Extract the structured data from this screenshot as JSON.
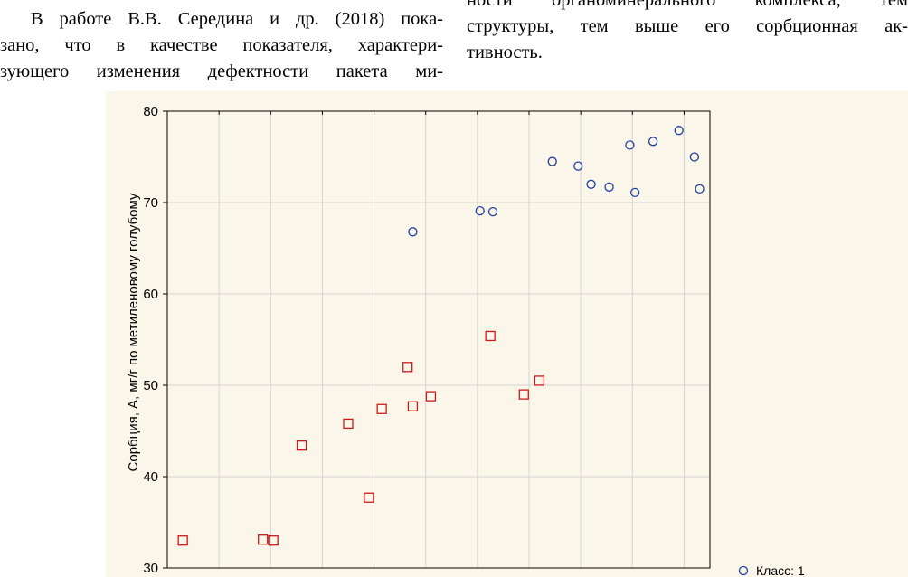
{
  "text": {
    "left_lines": [
      "В работе В.В. Середина и др. (2018) пока-",
      "зано, что в качестве показателя, характери-",
      "зующего изменения дефектности пакета ми-"
    ],
    "right_lines": [
      "ности органоминерального комплекса, тем",
      "структуры, тем выше его сорбционная ак-",
      "тивность."
    ]
  },
  "chart_data": {
    "type": "scatter",
    "title": "",
    "xlabel": "",
    "ylabel": "Сорбция, А, мг/г по метиленовому голубому",
    "ylim": [
      30,
      80
    ],
    "yticks": [
      30,
      40,
      50,
      60,
      70,
      80
    ],
    "xlim": [
      0,
      10.5
    ],
    "grid": true,
    "legend_position": "bottom-right",
    "series": [
      {
        "name": "Класс: 1",
        "marker": "circle",
        "color": "#1f3f9e",
        "points": [
          [
            4.75,
            66.8
          ],
          [
            6.05,
            69.1
          ],
          [
            6.3,
            69.0
          ],
          [
            7.45,
            74.5
          ],
          [
            7.95,
            74.0
          ],
          [
            8.2,
            72.0
          ],
          [
            8.55,
            71.7
          ],
          [
            8.95,
            76.3
          ],
          [
            9.05,
            71.1
          ],
          [
            9.4,
            76.7
          ],
          [
            9.9,
            77.9
          ],
          [
            10.2,
            75.0
          ],
          [
            10.3,
            71.5
          ]
        ]
      },
      {
        "name": "",
        "marker": "square",
        "color": "#cc1a1a",
        "points": [
          [
            0.3,
            33.0
          ],
          [
            1.85,
            33.1
          ],
          [
            2.05,
            33.0
          ],
          [
            2.6,
            43.4
          ],
          [
            3.5,
            45.8
          ],
          [
            3.9,
            37.7
          ],
          [
            4.15,
            47.4
          ],
          [
            4.65,
            52.0
          ],
          [
            4.75,
            47.7
          ],
          [
            5.1,
            48.8
          ],
          [
            6.25,
            55.4
          ],
          [
            6.9,
            49.0
          ],
          [
            7.2,
            50.5
          ]
        ]
      }
    ]
  }
}
